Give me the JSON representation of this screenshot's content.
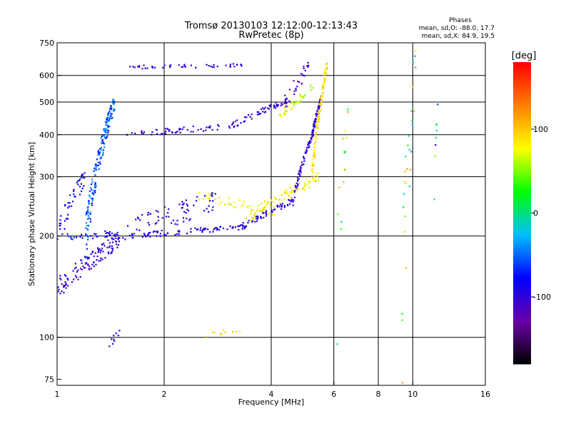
{
  "chart_data": {
    "type": "scatter",
    "title_line1": "Tromsø 20130103 12:12:00-12:13:43",
    "title_line2": "RwPretec (8p)",
    "stats": {
      "heading": "Phases",
      "o_line": "mean, sd,O: -88.0, 17.7",
      "x_line": "mean, sd,X:  84.9, 19.5"
    },
    "xlabel": "Frequency [MHz]",
    "ylabel": "Stationary phase Virtual Height [km]",
    "x_scale": "log",
    "y_scale": "log",
    "xlim": [
      1,
      16
    ],
    "ylim": [
      72,
      750
    ],
    "x_ticks": [
      {
        "value": 1,
        "label": "1"
      },
      {
        "value": 2,
        "label": "2"
      },
      {
        "value": 4,
        "label": "4"
      },
      {
        "value": 6,
        "label": "6"
      },
      {
        "value": 8,
        "label": "8"
      },
      {
        "value": 10,
        "label": "10"
      },
      {
        "value": 16,
        "label": "16"
      }
    ],
    "x_gridlines": [
      2,
      4,
      6,
      8,
      10
    ],
    "y_ticks": [
      {
        "value": 75,
        "label": "75"
      },
      {
        "value": 100,
        "label": "100"
      },
      {
        "value": 200,
        "label": "200"
      },
      {
        "value": 300,
        "label": "300"
      },
      {
        "value": 400,
        "label": "400"
      },
      {
        "value": 500,
        "label": "500"
      },
      {
        "value": 600,
        "label": "600"
      },
      {
        "value": 750,
        "label": "750"
      }
    ],
    "y_gridlines": [
      100,
      200,
      300,
      400,
      500,
      600
    ],
    "colorbar": {
      "label": "[deg]",
      "range": [
        -180,
        180
      ],
      "ticks": [
        {
          "value": 100,
          "label": "100"
        },
        {
          "value": 0,
          "label": "0"
        },
        {
          "value": -100,
          "label": "-100"
        }
      ],
      "stops": [
        "#000000",
        "#6a00a8",
        "#0000ff",
        "#00bfff",
        "#00ff00",
        "#ffff00",
        "#ff8000",
        "#ff0000"
      ]
    },
    "series": [
      {
        "segments": [
          {
            "f0": 1.0,
            "f1": 1.48,
            "h0": 198,
            "h1": 203,
            "hspread": 5,
            "n": 35,
            "phase": -80,
            "pspread": 25
          },
          {
            "f0": 1.48,
            "f1": 3.3,
            "h0": 199,
            "h1": 213,
            "hspread": 4,
            "n": 80,
            "phase": -95,
            "pspread": 15
          },
          {
            "f0": 3.3,
            "f1": 4.6,
            "h0": 213,
            "h1": 255,
            "hspread": 5,
            "n": 60,
            "phase": -95,
            "pspread": 15
          },
          {
            "f0": 4.6,
            "f1": 5.3,
            "h0": 255,
            "h1": 420,
            "hspread": 10,
            "n": 75,
            "phase": -100,
            "pspread": 15
          },
          {
            "f0": 5.25,
            "f1": 5.55,
            "h0": 420,
            "h1": 520,
            "hspread": 12,
            "n": 40,
            "phase": -100,
            "pspread": 15
          },
          {
            "f0": 3.4,
            "f1": 5.5,
            "h0": 225,
            "h1": 300,
            "hspread": 10,
            "n": 75,
            "phase": 85,
            "pspread": 18
          },
          {
            "f0": 5.2,
            "f1": 5.75,
            "h0": 300,
            "h1": 650,
            "hspread": 25,
            "n": 110,
            "phase": 90,
            "pspread": 15
          },
          {
            "f0": 2.5,
            "f1": 4.2,
            "h0": 265,
            "h1": 232,
            "hspread": 8,
            "n": 45,
            "phase": 80,
            "pspread": 18
          },
          {
            "f0": 1.0,
            "f1": 1.5,
            "h0": 140,
            "h1": 195,
            "hspread": 10,
            "n": 120,
            "phase": -100,
            "pspread": 20
          },
          {
            "f0": 1.2,
            "f1": 1.45,
            "h0": 195,
            "h1": 500,
            "hspread": 30,
            "n": 180,
            "phase": -55,
            "pspread": 25
          },
          {
            "f0": 1.0,
            "f1": 1.2,
            "h0": 200,
            "h1": 300,
            "hspread": 20,
            "n": 45,
            "phase": -85,
            "pspread": 20
          },
          {
            "f0": 1.55,
            "f1": 2.8,
            "h0": 205,
            "h1": 255,
            "hspread": 18,
            "n": 70,
            "phase": -95,
            "pspread": 15
          },
          {
            "f0": 1.55,
            "f1": 3.1,
            "h0": 400,
            "h1": 425,
            "hspread": 8,
            "n": 55,
            "phase": -100,
            "pspread": 15
          },
          {
            "f0": 3.1,
            "f1": 4.5,
            "h0": 425,
            "h1": 510,
            "hspread": 10,
            "n": 55,
            "phase": -100,
            "pspread": 15
          },
          {
            "f0": 4.2,
            "f1": 5.3,
            "h0": 450,
            "h1": 560,
            "hspread": 14,
            "n": 40,
            "phase": 70,
            "pspread": 25
          },
          {
            "f0": 1.6,
            "f1": 3.4,
            "h0": 635,
            "h1": 645,
            "hspread": 8,
            "n": 45,
            "phase": -100,
            "pspread": 15
          },
          {
            "f0": 4.3,
            "f1": 5.1,
            "h0": 480,
            "h1": 640,
            "hspread": 30,
            "n": 30,
            "phase": -110,
            "pspread": 15
          },
          {
            "f0": 6.1,
            "f1": 6.6,
            "h0": 120,
            "h1": 480,
            "hspread": 80,
            "n": 16,
            "phase": 60,
            "pspread": 60
          },
          {
            "f0": 9.3,
            "f1": 10.2,
            "h0": 80,
            "h1": 640,
            "hspread": 120,
            "n": 28,
            "phase": 40,
            "pspread": 90
          },
          {
            "f0": 11.4,
            "f1": 11.8,
            "h0": 210,
            "h1": 520,
            "hspread": 40,
            "n": 8,
            "phase": -20,
            "pspread": 90
          },
          {
            "f0": 1.4,
            "f1": 1.5,
            "h0": 95,
            "h1": 103,
            "hspread": 3,
            "n": 9,
            "phase": -100,
            "pspread": 15
          },
          {
            "f0": 2.6,
            "f1": 3.3,
            "h0": 102,
            "h1": 106,
            "hspread": 2,
            "n": 10,
            "phase": 90,
            "pspread": 15
          }
        ]
      }
    ]
  }
}
